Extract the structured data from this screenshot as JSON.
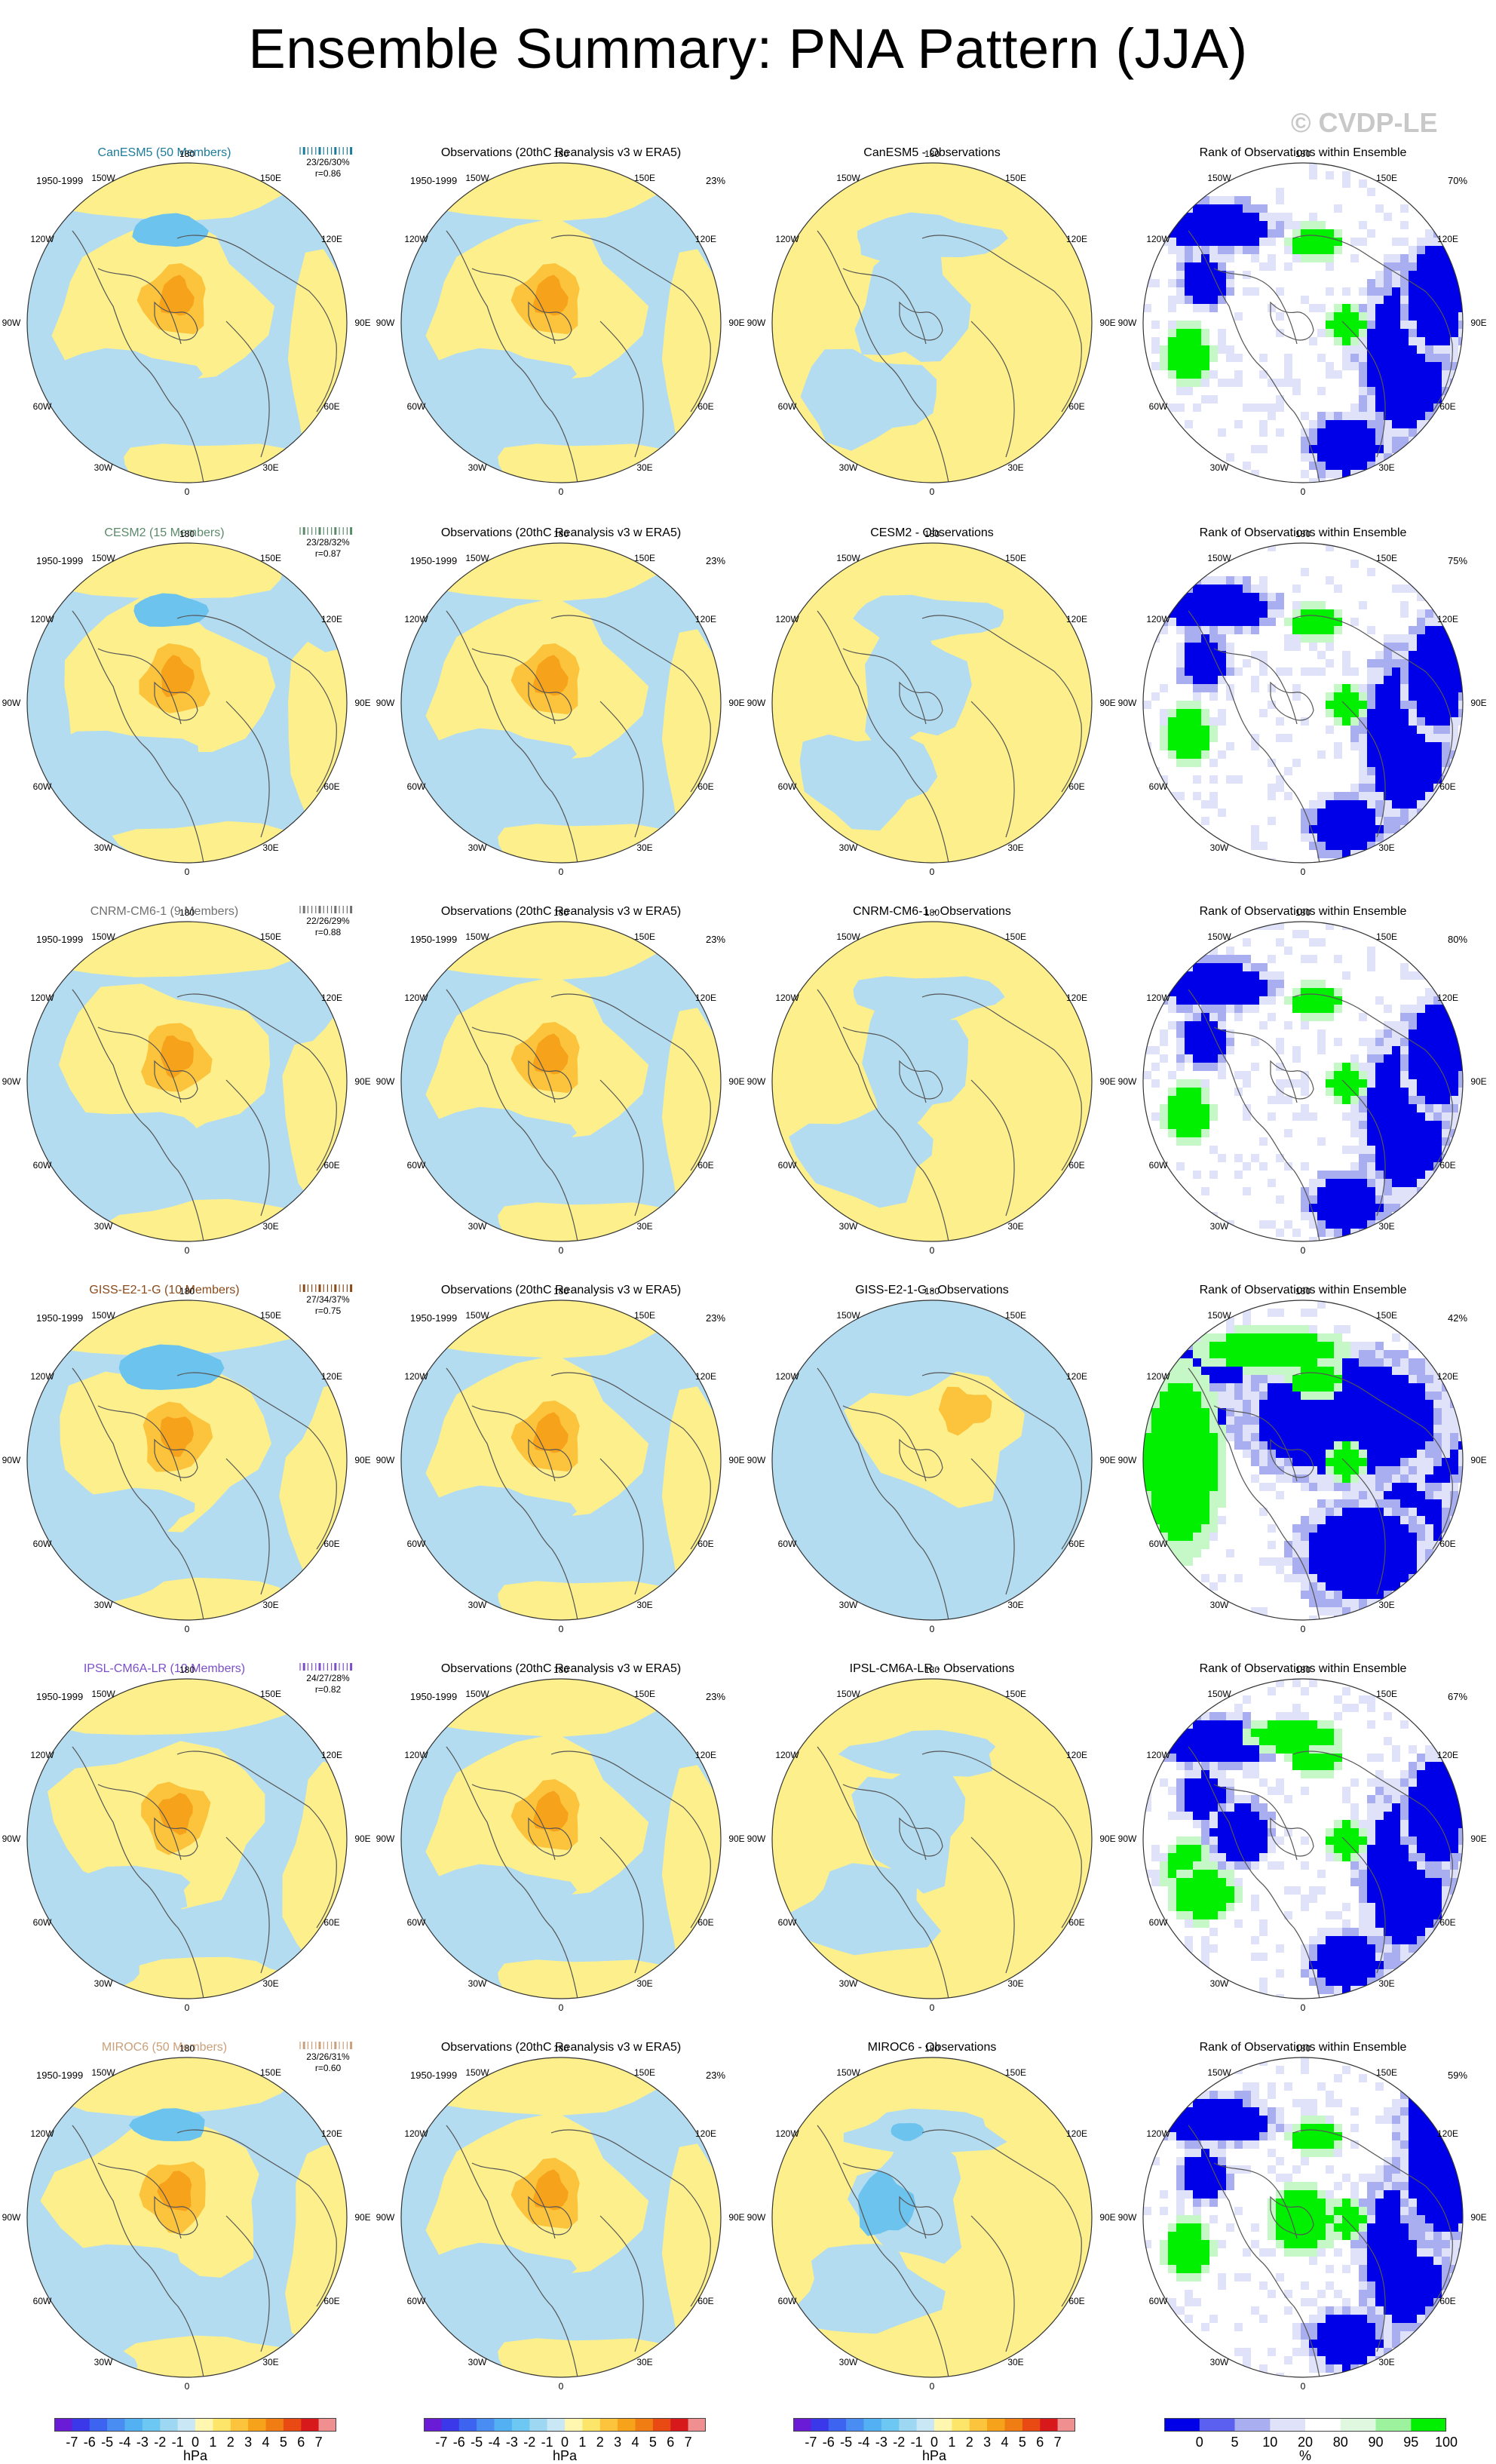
{
  "title": "Ensemble Summary: PNA Pattern (JJA)",
  "watermark": "© CVDP-LE",
  "period": "1950-1999",
  "lon_labels": [
    "180",
    "150E",
    "120E",
    "90E",
    "60E",
    "30E",
    "0",
    "30W",
    "60W",
    "90W",
    "120W",
    "150W"
  ],
  "colors": {
    "neg_light": "#b3dcf0",
    "pos_light": "#fdf08c",
    "pos_med": "#fcc33c",
    "pos_strong": "#f7a21b",
    "neg_med": "#6cc3ee",
    "rank_blue": "#0000e8",
    "rank_light_blue": "#a9aef0",
    "rank_pale_blue": "#dfe2f8",
    "rank_green": "#00f000",
    "rank_light_green": "#c6f7c6",
    "coast": "#555555"
  },
  "obs_title": "Observations (20thC Reanalysis v3 w ERA5)",
  "rank_title": "Rank of Observations within Ensemble",
  "rows": [
    {
      "model": "CanESM5",
      "model_label": "CanESM5 (50 Members)",
      "label_color": "#1d7b9a",
      "stats": "23/26/30%",
      "r": "r=0.86",
      "obs_pct": "23%",
      "diff_title": "CanESM5 - Observations",
      "rank_pct": "70%",
      "pattern": 0
    },
    {
      "model": "CESM2",
      "model_label": "CESM2 (15 Members)",
      "label_color": "#5a8a6a",
      "stats": "23/28/32%",
      "r": "r=0.87",
      "obs_pct": "23%",
      "diff_title": "CESM2 - Observations",
      "rank_pct": "75%",
      "pattern": 1
    },
    {
      "model": "CNRM-CM6-1",
      "model_label": "CNRM-CM6-1 (9 Members)",
      "label_color": "#707070",
      "stats": "22/26/29%",
      "r": "r=0.88",
      "obs_pct": "23%",
      "diff_title": "CNRM-CM6-1 - Observations",
      "rank_pct": "80%",
      "pattern": 2
    },
    {
      "model": "GISS-E2-1-G",
      "model_label": "GISS-E2-1-G (10 Members)",
      "label_color": "#8a4a1a",
      "stats": "27/34/37%",
      "r": "r=0.75",
      "obs_pct": "23%",
      "diff_title": "GISS-E2-1-G - Observations",
      "rank_pct": "42%",
      "pattern": 3
    },
    {
      "model": "IPSL-CM6A-LR",
      "model_label": "IPSL-CM6A-LR (10 Members)",
      "label_color": "#7b4fc8",
      "stats": "24/27/28%",
      "r": "r=0.82",
      "obs_pct": "23%",
      "diff_title": "IPSL-CM6A-LR - Observations",
      "rank_pct": "67%",
      "pattern": 4
    },
    {
      "model": "MIROC6",
      "model_label": "MIROC6 (50 Members)",
      "label_color": "#c9a07a",
      "stats": "23/26/31%",
      "r": "r=0.60",
      "obs_pct": "23%",
      "diff_title": "MIROC6 - Observations",
      "rank_pct": "59%",
      "pattern": 5
    }
  ],
  "colorbar_hpa": {
    "labels": [
      "-7",
      "-6",
      "-5",
      "-4",
      "-3",
      "-2",
      "-1",
      "0",
      "1",
      "2",
      "3",
      "4",
      "5",
      "6",
      "7"
    ],
    "colors": [
      "#6a1bd6",
      "#3a38e8",
      "#3d64f0",
      "#4a8df2",
      "#53b1f3",
      "#6cc8f2",
      "#9ed7f2",
      "#c9e7f5",
      "#fff6b0",
      "#fde56a",
      "#fcc33c",
      "#f7a21b",
      "#f07c14",
      "#e94a14",
      "#d7191c",
      "#f08f8f"
    ],
    "unit": "hPa"
  },
  "colorbar_rank": {
    "labels": [
      "0",
      "5",
      "10",
      "20",
      "80",
      "90",
      "95",
      "100"
    ],
    "colors": [
      "#0000e8",
      "#5c60f0",
      "#a9aef0",
      "#dfe2f8",
      "#ffffff",
      "#dff8df",
      "#9df29d",
      "#00f000"
    ],
    "unit": "%"
  }
}
